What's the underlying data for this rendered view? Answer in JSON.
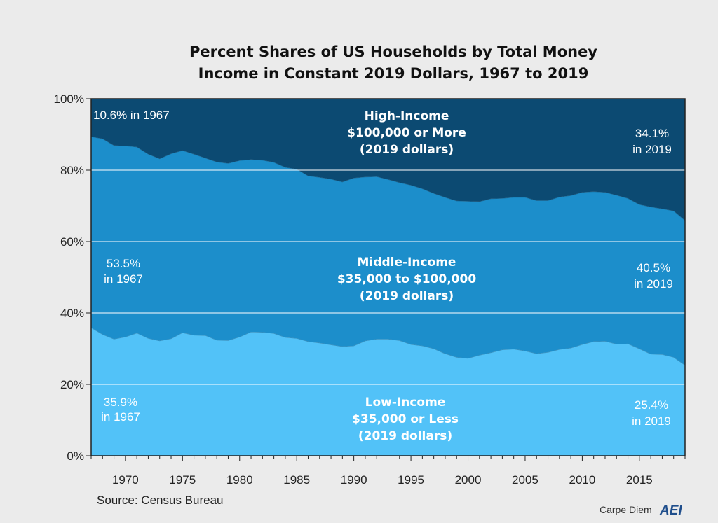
{
  "title_line1": "Percent Shares of US Households by Total Money",
  "title_line2": "Income in Constant 2019 Dollars, 1967 to 2019",
  "source": "Source: Census Bureau",
  "brand": "Carpe Diem",
  "logo": "AEI",
  "colors": {
    "high": "#0c4a72",
    "middle": "#1c8ecb",
    "low": "#52c2f8",
    "grid": "#ffffff",
    "background": "#ebebeb"
  },
  "annotations": {
    "high_start": "10.6% in 1967",
    "high_end_1": "34.1%",
    "high_end_2": "in 2019",
    "mid_start_1": "53.5%",
    "mid_start_2": "in 1967",
    "mid_end_1": "40.5%",
    "mid_end_2": "in 2019",
    "low_start_1": "35.9%",
    "low_start_2": "in 1967",
    "low_end_1": "25.4%",
    "low_end_2": "in 2019"
  },
  "band_labels": {
    "high": [
      "High-Income",
      "$100,000 or More",
      "(2019 dollars)"
    ],
    "middle": [
      "Middle-Income",
      "$35,000 to $100,000",
      "(2019 dollars)"
    ],
    "low": [
      "Low-Income",
      "$35,000 or Less",
      "(2019 dollars)"
    ]
  },
  "chart_data": {
    "type": "area",
    "stacked": true,
    "title": "Percent Shares of US Households by Total Money Income in Constant 2019 Dollars, 1967 to 2019",
    "xlabel": "",
    "ylabel": "",
    "xlim": [
      1967,
      2019
    ],
    "ylim": [
      0,
      100
    ],
    "y_ticks": [
      "0%",
      "20%",
      "40%",
      "60%",
      "80%",
      "100%"
    ],
    "x_ticks": [
      "1970",
      "1975",
      "1980",
      "1985",
      "1990",
      "1995",
      "2000",
      "2005",
      "2010",
      "2015"
    ],
    "x_tick_values": [
      1970,
      1975,
      1980,
      1985,
      1990,
      1995,
      2000,
      2005,
      2010,
      2015
    ],
    "grid": true,
    "x": [
      1967,
      1968,
      1969,
      1970,
      1971,
      1972,
      1973,
      1974,
      1975,
      1976,
      1977,
      1978,
      1979,
      1980,
      1981,
      1982,
      1983,
      1984,
      1985,
      1986,
      1987,
      1988,
      1989,
      1990,
      1991,
      1992,
      1993,
      1994,
      1995,
      1996,
      1997,
      1998,
      1999,
      2000,
      2001,
      2002,
      2003,
      2004,
      2005,
      2006,
      2007,
      2008,
      2009,
      2010,
      2011,
      2012,
      2013,
      2014,
      2015,
      2016,
      2017,
      2018,
      2019
    ],
    "series": [
      {
        "name": "Low-Income",
        "values": [
          35.9,
          34.0,
          32.7,
          33.3,
          34.4,
          32.9,
          32.2,
          32.8,
          34.5,
          33.8,
          33.7,
          32.4,
          32.3,
          33.3,
          34.7,
          34.6,
          34.3,
          33.2,
          32.9,
          32.0,
          31.6,
          31.1,
          30.6,
          30.8,
          32.2,
          32.7,
          32.7,
          32.3,
          31.2,
          30.8,
          30.0,
          28.6,
          27.6,
          27.3,
          28.2,
          28.9,
          29.7,
          29.9,
          29.4,
          28.6,
          29.0,
          29.8,
          30.2,
          31.2,
          32.0,
          32.1,
          31.3,
          31.4,
          30.0,
          28.5,
          28.4,
          27.6,
          25.4
        ]
      },
      {
        "name": "Middle-Income",
        "values": [
          53.5,
          54.8,
          54.2,
          53.5,
          52.1,
          51.6,
          51.0,
          51.8,
          51.0,
          50.7,
          49.7,
          49.9,
          49.6,
          49.4,
          48.3,
          48.2,
          47.9,
          47.6,
          47.4,
          46.4,
          46.4,
          46.4,
          46.1,
          47.0,
          45.9,
          45.5,
          44.7,
          44.2,
          44.6,
          44.0,
          43.5,
          43.8,
          43.8,
          44.0,
          43.0,
          43.1,
          42.4,
          42.5,
          43.0,
          42.9,
          42.5,
          42.7,
          42.7,
          42.6,
          42.0,
          41.7,
          41.7,
          40.7,
          40.4,
          41.2,
          40.8,
          41.0,
          40.5
        ]
      },
      {
        "name": "High-Income",
        "values": [
          10.6,
          11.2,
          13.1,
          13.2,
          13.5,
          15.5,
          16.8,
          15.4,
          14.5,
          15.5,
          16.6,
          17.7,
          18.1,
          17.3,
          17.0,
          17.2,
          17.8,
          19.2,
          19.7,
          21.6,
          22.0,
          22.5,
          23.3,
          22.2,
          21.9,
          21.8,
          22.6,
          23.5,
          24.2,
          25.2,
          26.5,
          27.6,
          28.6,
          28.7,
          28.8,
          28.0,
          27.9,
          27.6,
          27.6,
          28.5,
          28.5,
          27.5,
          27.1,
          26.2,
          26.0,
          26.2,
          27.0,
          27.9,
          29.6,
          30.3,
          30.8,
          31.4,
          34.1
        ]
      }
    ]
  }
}
